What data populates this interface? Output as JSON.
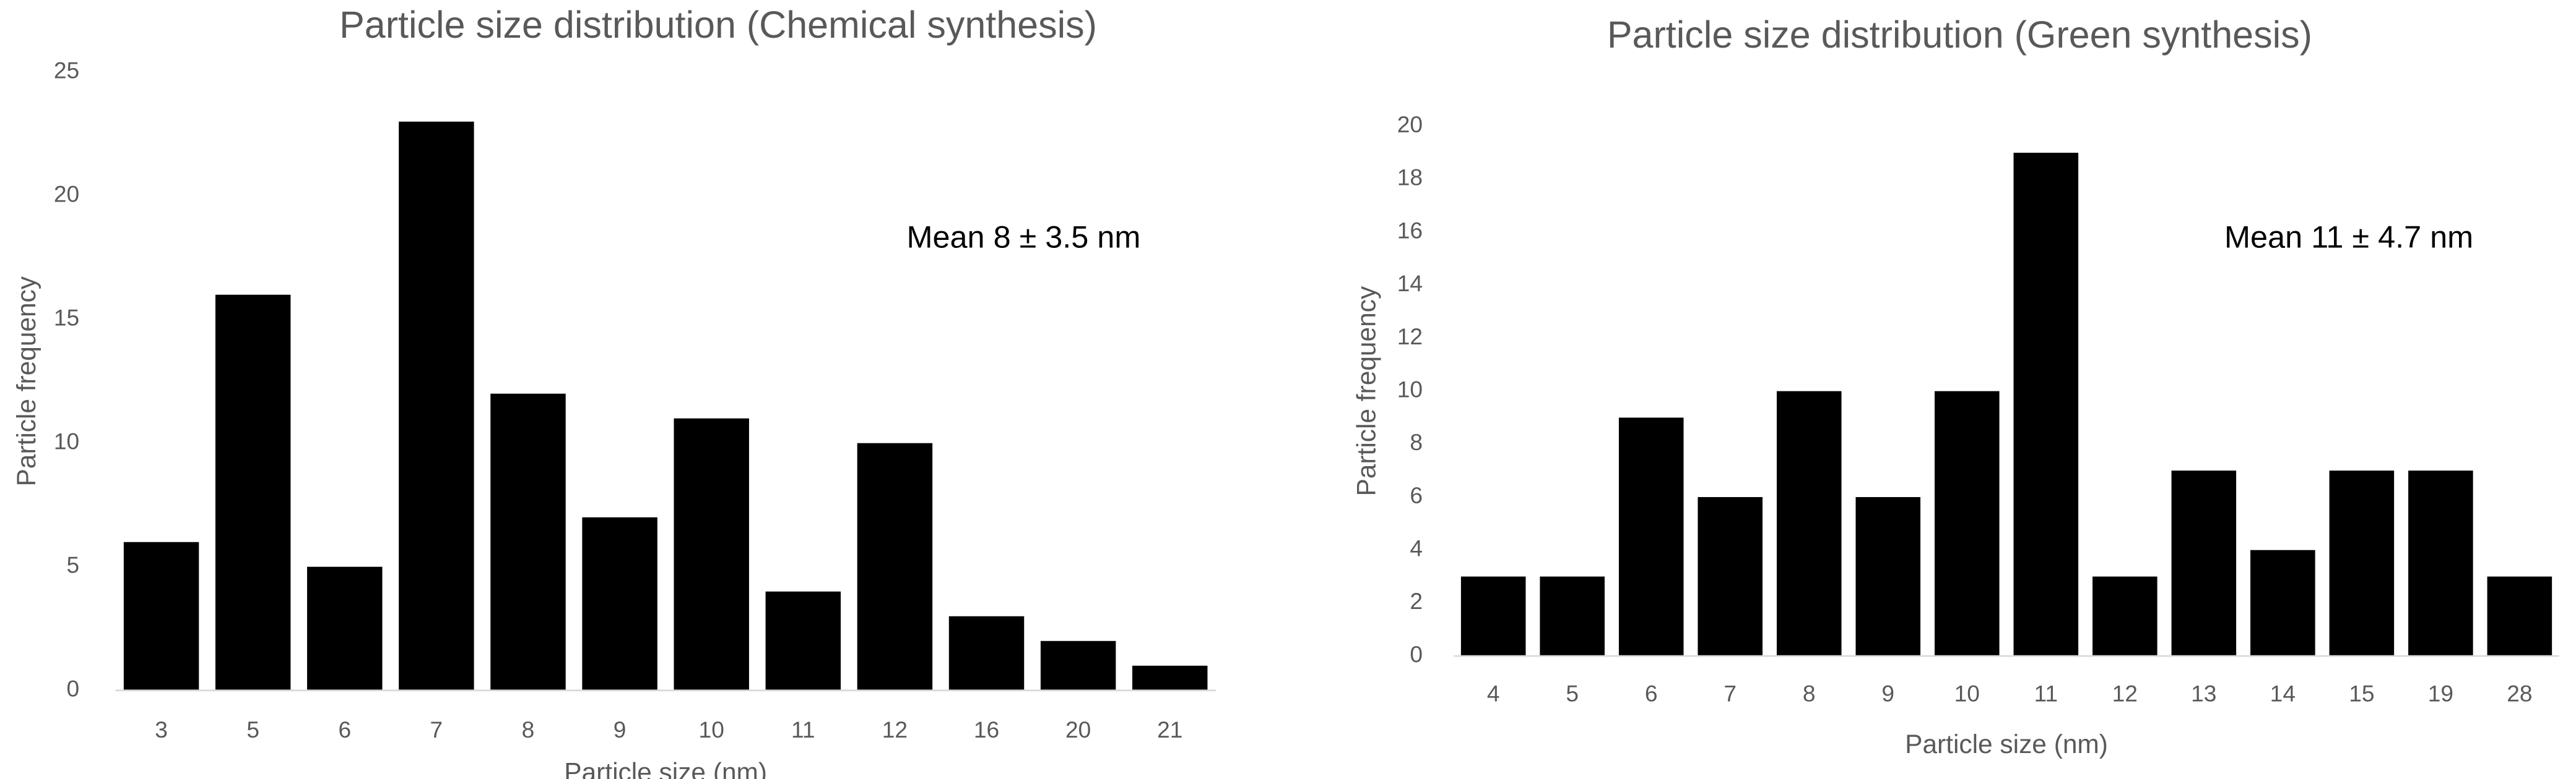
{
  "chart_data": [
    {
      "type": "bar",
      "title": "Particle size distribution (Chemical synthesis)",
      "x_label": "Particle size (nm)",
      "y_label": "Particle frequency",
      "annotation": "Mean 8 ± 3.5 nm",
      "categories": [
        "3",
        "5",
        "6",
        "7",
        "8",
        "9",
        "10",
        "11",
        "12",
        "16",
        "20",
        "21"
      ],
      "values": [
        6,
        16,
        5,
        23,
        12,
        7,
        11,
        4,
        10,
        3,
        2,
        1
      ],
      "color": "#000000",
      "ylim": [
        0,
        25
      ],
      "yticks": [
        0,
        5,
        10,
        15,
        20,
        25
      ],
      "grid": false
    },
    {
      "type": "bar",
      "title": "Particle size distribution (Green synthesis)",
      "x_label": "Particle size (nm)",
      "y_label": "Particle frequency",
      "annotation": "Mean 11 ± 4.7 nm",
      "categories": [
        "4",
        "5",
        "6",
        "7",
        "8",
        "9",
        "10",
        "11",
        "12",
        "13",
        "14",
        "15",
        "19",
        "28"
      ],
      "values": [
        3,
        3,
        9,
        6,
        10,
        6,
        10,
        19,
        3,
        7,
        4,
        7,
        7,
        3
      ],
      "color": "#000000",
      "ylim": [
        0,
        20
      ],
      "yticks": [
        0,
        2,
        4,
        6,
        8,
        10,
        12,
        14,
        16,
        18,
        20
      ],
      "grid": false
    }
  ]
}
